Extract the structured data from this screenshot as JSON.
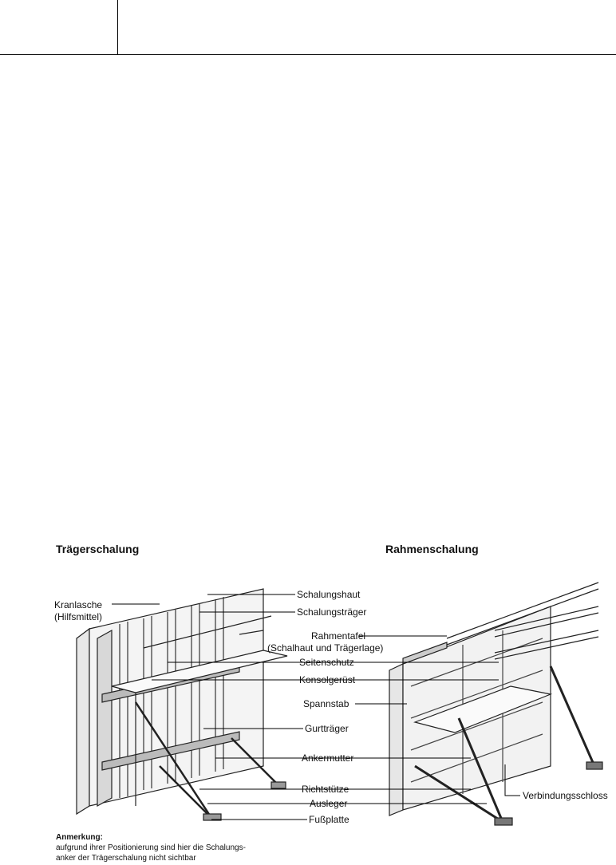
{
  "headings": {
    "left": "Trägerschalung",
    "right": "Rahmenschalung"
  },
  "labels": {
    "kranlasche_1": "Kranlasche",
    "kranlasche_2": "(Hilfsmittel)",
    "schalungshaut": "Schalungshaut",
    "schalungstraeger": "Schalungsträger",
    "rahmentafel_1": "Rahmentafel",
    "rahmentafel_2": "(Schalhaut und Trägerlage)",
    "seitenschutz": "Seitenschutz",
    "konsolgeruest": "Konsolgerüst",
    "spannstab": "Spannstab",
    "gurttraeger": "Gurtträger",
    "ankermutter": "Ankermutter",
    "richtstuetze": "Richtstütze",
    "ausleger": "Ausleger",
    "fussplatte": "Fußplatte",
    "verbindungsschloss": "Verbindungsschloss"
  },
  "note": {
    "title": "Anmerkung:",
    "line1": "aufgrund ihrer Positionierung sind hier die Schalungs-",
    "line2": "anker der Trägerschalung nicht sichtbar"
  }
}
